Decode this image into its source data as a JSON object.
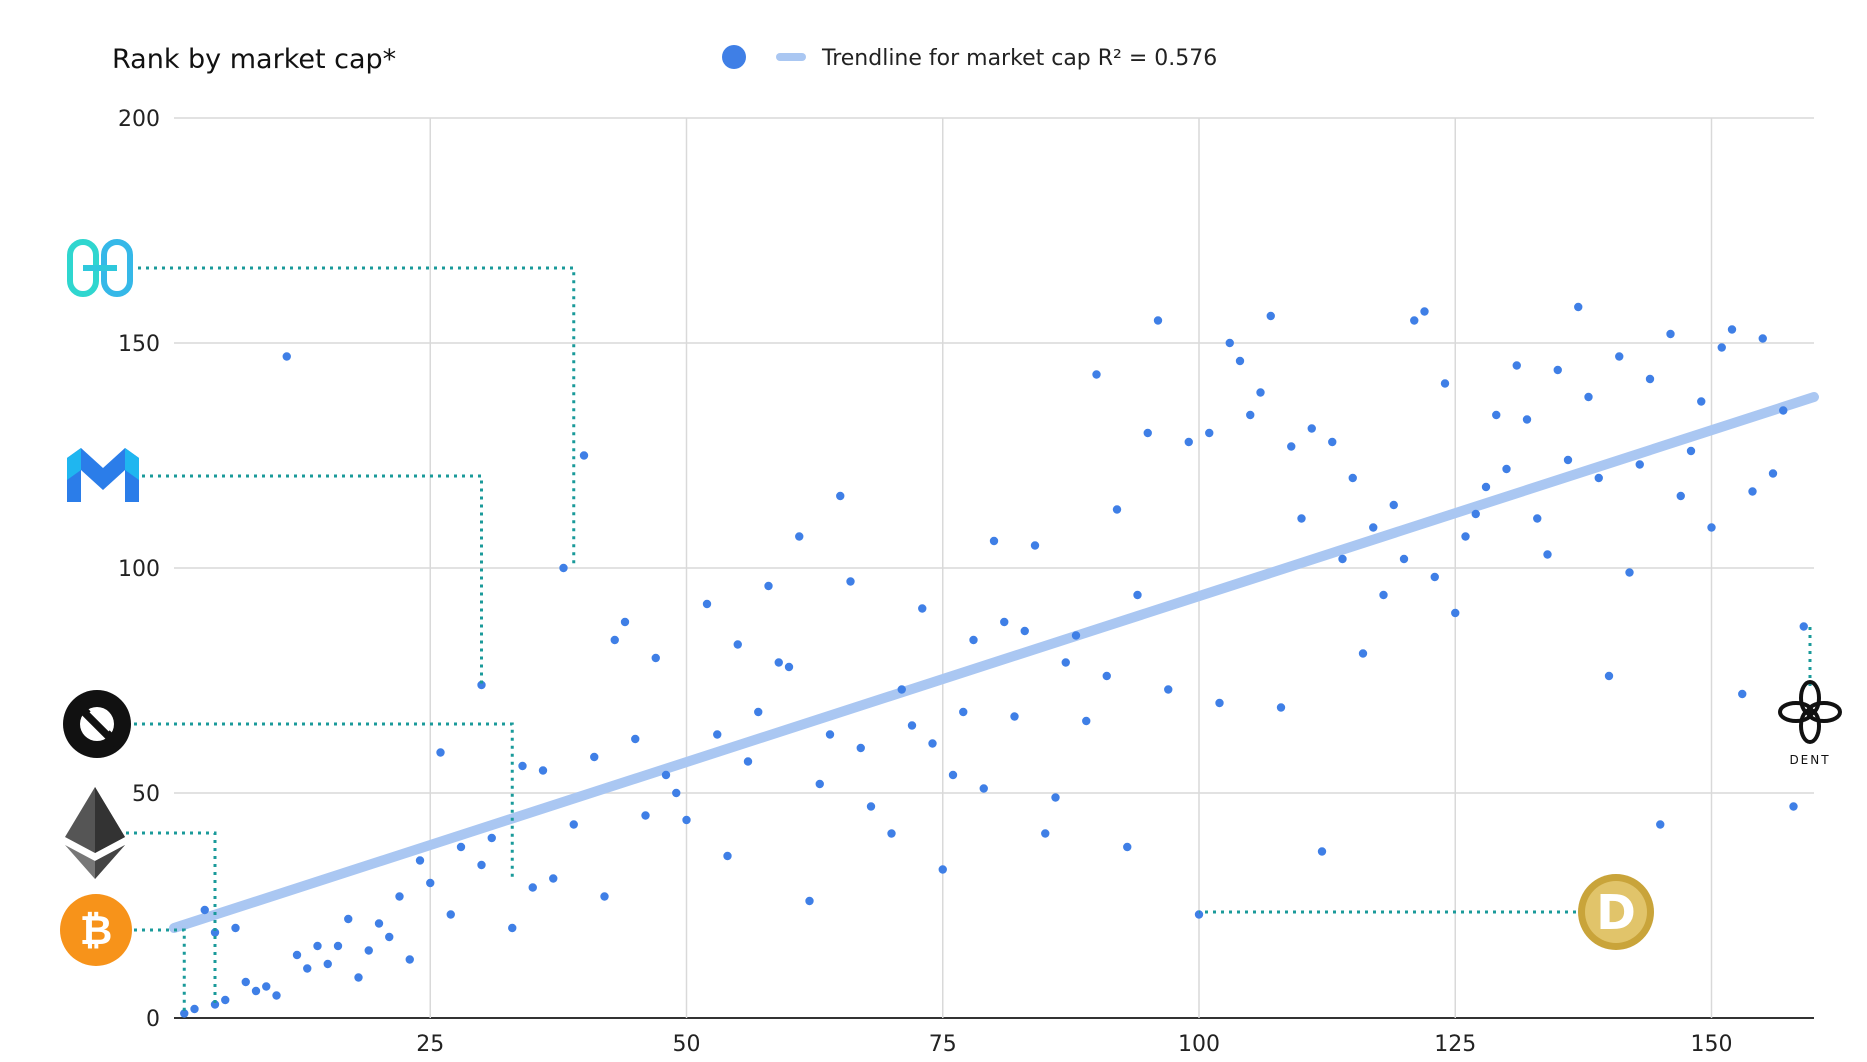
{
  "chart_data": {
    "type": "scatter",
    "title": "Rank by market cap*",
    "legend": {
      "placement": "top-center",
      "entries": [
        {
          "kind": "series-marker",
          "label": ""
        },
        {
          "kind": "trendline",
          "label": "Trendline for market cap R² = 0.576"
        }
      ]
    },
    "xlim": [
      0,
      160
    ],
    "ylim": [
      0,
      200
    ],
    "x_ticks": [
      25,
      50,
      75,
      100,
      125,
      150
    ],
    "x_tick_labels": [
      "25",
      "50",
      "75",
      "100",
      "125",
      "150"
    ],
    "y_ticks": [
      0,
      50,
      100,
      150,
      200
    ],
    "y_tick_labels": [
      "0",
      "50",
      "100",
      "150",
      "200"
    ],
    "grid": true,
    "colors": {
      "points": "#3f7fe6",
      "trendline": "#aac7f2",
      "leader": "#1a9a9a"
    },
    "trendline": {
      "x": [
        0,
        160
      ],
      "y": [
        20,
        138
      ],
      "r_squared": 0.576
    },
    "points": [
      [
        1,
        1
      ],
      [
        2,
        2
      ],
      [
        3,
        24
      ],
      [
        4,
        19
      ],
      [
        4,
        3
      ],
      [
        5,
        4
      ],
      [
        6,
        20
      ],
      [
        7,
        8
      ],
      [
        8,
        6
      ],
      [
        9,
        7
      ],
      [
        10,
        5
      ],
      [
        11,
        147
      ],
      [
        12,
        14
      ],
      [
        13,
        11
      ],
      [
        14,
        16
      ],
      [
        15,
        12
      ],
      [
        16,
        16
      ],
      [
        17,
        22
      ],
      [
        18,
        9
      ],
      [
        19,
        15
      ],
      [
        20,
        21
      ],
      [
        21,
        18
      ],
      [
        22,
        27
      ],
      [
        23,
        13
      ],
      [
        24,
        35
      ],
      [
        25,
        30
      ],
      [
        26,
        59
      ],
      [
        27,
        23
      ],
      [
        28,
        38
      ],
      [
        30,
        74
      ],
      [
        30,
        34
      ],
      [
        31,
        40
      ],
      [
        33,
        20
      ],
      [
        34,
        56
      ],
      [
        35,
        29
      ],
      [
        36,
        55
      ],
      [
        37,
        31
      ],
      [
        38,
        100
      ],
      [
        39,
        43
      ],
      [
        40,
        125
      ],
      [
        41,
        58
      ],
      [
        42,
        27
      ],
      [
        43,
        84
      ],
      [
        44,
        88
      ],
      [
        45,
        62
      ],
      [
        46,
        45
      ],
      [
        47,
        80
      ],
      [
        48,
        54
      ],
      [
        49,
        50
      ],
      [
        50,
        44
      ],
      [
        52,
        92
      ],
      [
        53,
        63
      ],
      [
        54,
        36
      ],
      [
        55,
        83
      ],
      [
        56,
        57
      ],
      [
        57,
        68
      ],
      [
        58,
        96
      ],
      [
        59,
        79
      ],
      [
        60,
        78
      ],
      [
        61,
        107
      ],
      [
        62,
        26
      ],
      [
        63,
        52
      ],
      [
        64,
        63
      ],
      [
        65,
        116
      ],
      [
        66,
        97
      ],
      [
        67,
        60
      ],
      [
        68,
        47
      ],
      [
        70,
        41
      ],
      [
        71,
        73
      ],
      [
        72,
        65
      ],
      [
        73,
        91
      ],
      [
        74,
        61
      ],
      [
        75,
        33
      ],
      [
        76,
        54
      ],
      [
        77,
        68
      ],
      [
        78,
        84
      ],
      [
        79,
        51
      ],
      [
        80,
        106
      ],
      [
        81,
        88
      ],
      [
        82,
        67
      ],
      [
        83,
        86
      ],
      [
        84,
        105
      ],
      [
        85,
        41
      ],
      [
        86,
        49
      ],
      [
        87,
        79
      ],
      [
        88,
        85
      ],
      [
        89,
        66
      ],
      [
        90,
        143
      ],
      [
        91,
        76
      ],
      [
        92,
        113
      ],
      [
        93,
        38
      ],
      [
        94,
        94
      ],
      [
        95,
        130
      ],
      [
        96,
        155
      ],
      [
        97,
        73
      ],
      [
        99,
        128
      ],
      [
        100,
        23
      ],
      [
        101,
        130
      ],
      [
        102,
        70
      ],
      [
        103,
        150
      ],
      [
        104,
        146
      ],
      [
        105,
        134
      ],
      [
        106,
        139
      ],
      [
        107,
        156
      ],
      [
        108,
        69
      ],
      [
        109,
        127
      ],
      [
        110,
        111
      ],
      [
        111,
        131
      ],
      [
        112,
        37
      ],
      [
        113,
        128
      ],
      [
        114,
        102
      ],
      [
        115,
        120
      ],
      [
        116,
        81
      ],
      [
        117,
        109
      ],
      [
        118,
        94
      ],
      [
        119,
        114
      ],
      [
        120,
        102
      ],
      [
        121,
        155
      ],
      [
        122,
        157
      ],
      [
        123,
        98
      ],
      [
        124,
        141
      ],
      [
        125,
        90
      ],
      [
        126,
        107
      ],
      [
        127,
        112
      ],
      [
        128,
        118
      ],
      [
        129,
        134
      ],
      [
        130,
        122
      ],
      [
        131,
        145
      ],
      [
        132,
        133
      ],
      [
        133,
        111
      ],
      [
        134,
        103
      ],
      [
        135,
        144
      ],
      [
        136,
        124
      ],
      [
        137,
        158
      ],
      [
        138,
        138
      ],
      [
        139,
        120
      ],
      [
        140,
        76
      ],
      [
        141,
        147
      ],
      [
        142,
        99
      ],
      [
        143,
        123
      ],
      [
        144,
        142
      ],
      [
        145,
        43
      ],
      [
        146,
        152
      ],
      [
        147,
        116
      ],
      [
        148,
        126
      ],
      [
        149,
        137
      ],
      [
        150,
        109
      ],
      [
        151,
        149
      ],
      [
        152,
        153
      ],
      [
        153,
        72
      ],
      [
        154,
        117
      ],
      [
        155,
        151
      ],
      [
        156,
        121
      ],
      [
        157,
        135
      ],
      [
        158,
        47
      ],
      [
        159,
        87
      ]
    ]
  },
  "annotations": [
    {
      "name": "harmony-logo",
      "color": "#2fd6cf",
      "x": 39,
      "y": 100
    },
    {
      "name": "polygon-logo",
      "color": "#2b7de9",
      "x": 30,
      "y": 74
    },
    {
      "name": "0x-logo",
      "color": "#111111",
      "x": 33,
      "y": 31
    },
    {
      "name": "ethereum-logo",
      "color": "#444444",
      "x": 4,
      "y": 3
    },
    {
      "name": "bitcoin-logo",
      "color": "#f7931a",
      "x": 1,
      "y": 1
    },
    {
      "name": "dogecoin-logo",
      "color": "#c9a43a",
      "x": 100,
      "y": 23
    },
    {
      "name": "dent-logo",
      "color": "#111111",
      "text": "DENT",
      "x": 159,
      "y": 87
    }
  ]
}
